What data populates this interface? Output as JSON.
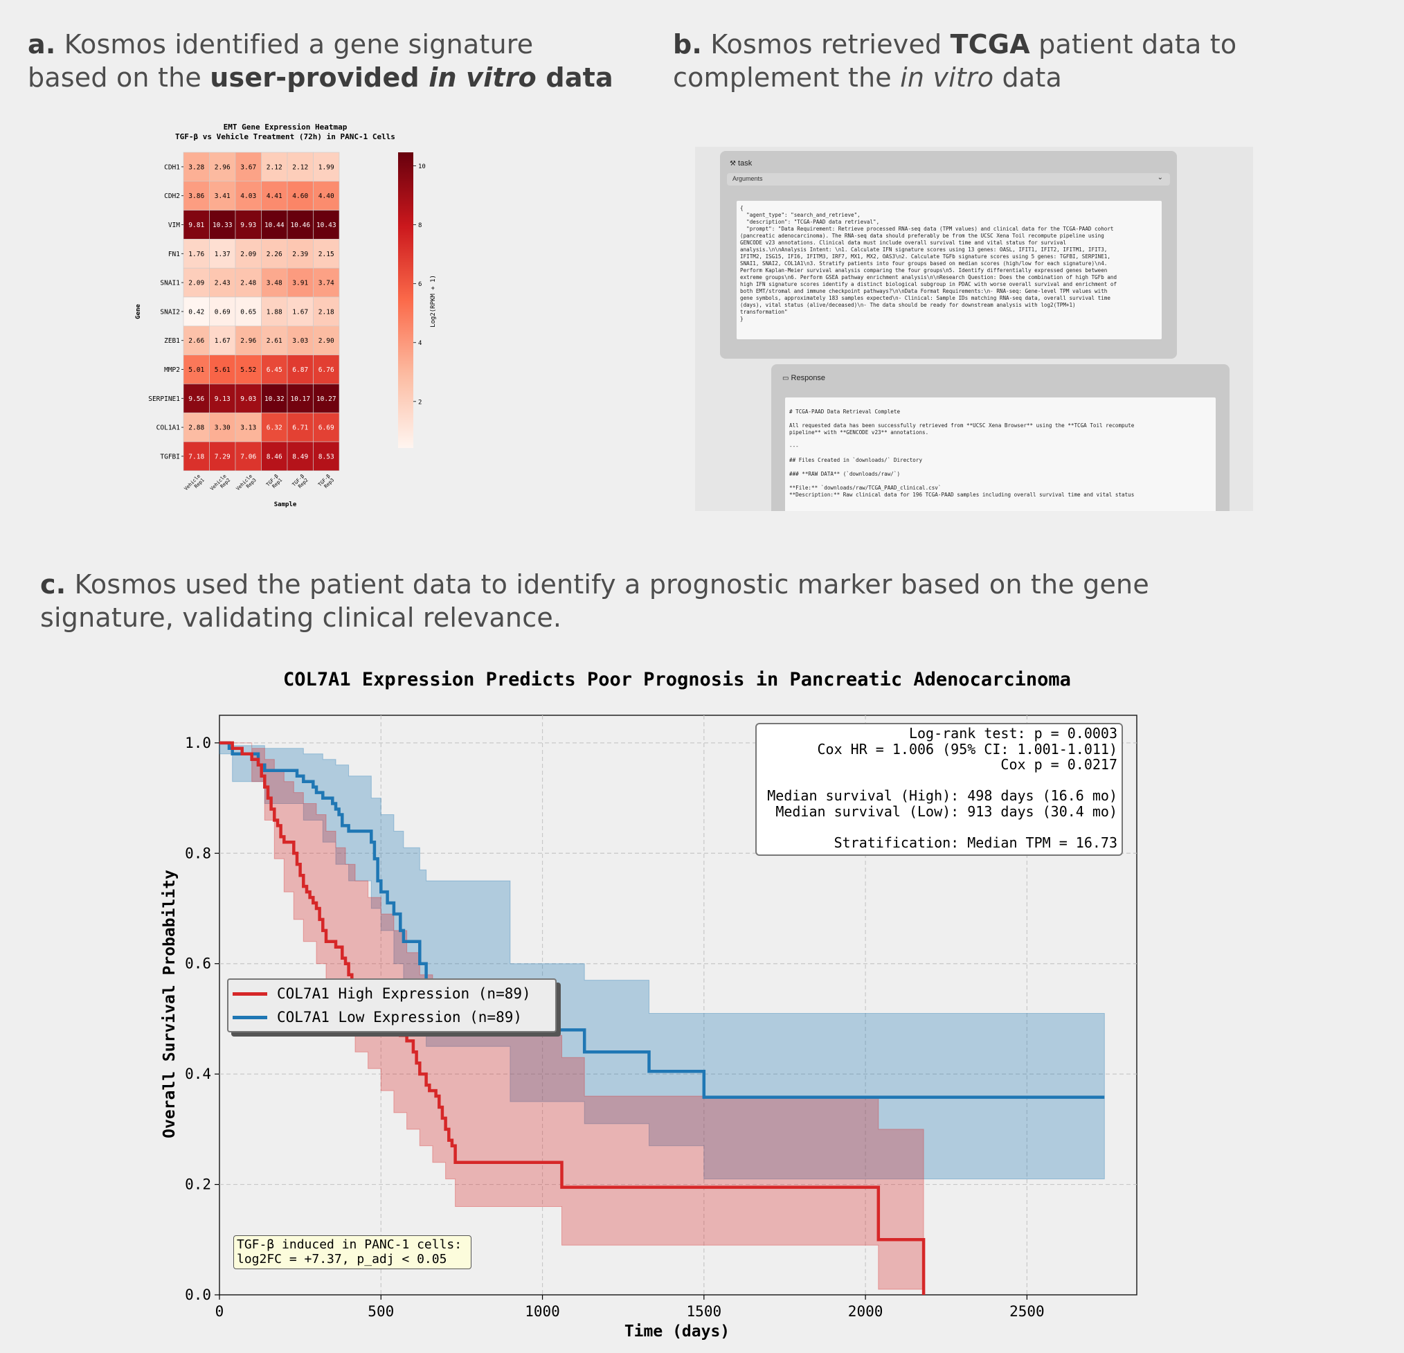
{
  "captions": {
    "a": {
      "letter": "a.",
      "t1": " Kosmos identified a gene signature",
      "t2a": "based on the ",
      "t2b": "user-provided ",
      "t2c": "in vitro",
      "t2d": " data"
    },
    "b": {
      "letter": "b.",
      "t1a": " Kosmos retrieved ",
      "t1b": "TCGA",
      "t1c": " patient data to",
      "t2a": "complement the ",
      "t2b": "in vitro",
      "t2c": " data"
    },
    "c": {
      "letter": "c.",
      "t1": " Kosmos used the patient data to identify a prognostic marker based on the gene",
      "t2": "signature, validating clinical relevance."
    }
  },
  "screenshot": {
    "task_label": "task",
    "args_label": "Arguments",
    "args_text": "{\n  \"agent_type\": \"search_and_retrieve\",\n  \"description\": \"TCGA-PAAD data retrieval\",\n  \"prompt\": \"Data Requirement: Retrieve processed RNA-seq data (TPM values) and clinical data for the TCGA-PAAD cohort\n(pancreatic adenocarcinoma). The RNA-seq data should preferably be from the UCSC Xena Toil recompute pipeline using\nGENCODE v23 annotations. Clinical data must include overall survival time and vital status for survival\nanalysis.\\n\\nAnalysis Intent: \\n1. Calculate IFN signature scores using 13 genes: OASL, IFIT1, IFIT2, IFITM1, IFIT3,\nIFITM2, ISG15, IFI6, IFITM3, IRF7, MX1, MX2, OAS3\\n2. Calculate TGFb signature scores using 5 genes: TGFBI, SERPINE1,\nSNAI1, SNAI2, COL1A1\\n3. Stratify patients into four groups based on median scores (high/low for each signature)\\n4.\nPerform Kaplan-Meier survival analysis comparing the four groups\\n5. Identify differentially expressed genes between\nextreme groups\\n6. Perform GSEA pathway enrichment analysis\\n\\nResearch Question: Does the combination of high TGFb and\nhigh IFN signature scores identify a distinct biological subgroup in PDAC with worse overall survival and enrichment of\nboth EMT/stromal and immune checkpoint pathways?\\n\\nData Format Requirements:\\n- RNA-seq: Gene-level TPM values with\ngene symbols, approximately 183 samples expected\\n- Clinical: Sample IDs matching RNA-seq data, overall survival time\n(days), vital status (alive/deceased)\\n- The data should be ready for downstream analysis with log2(TPM+1)\ntransformation\"\n}",
    "response_label": "Response",
    "response_text": "# TCGA-PAAD Data Retrieval Complete\n\nAll requested data has been successfully retrieved from **UCSC Xena Browser** using the **TCGA Toil recompute\npipeline** with **GENCODE v23** annotations.\n\n---\n\n## Files Created in `downloads/` Directory\n\n### **RAW DATA** (`downloads/raw/`)\n\n**File:** `downloads/raw/TCGA_PAAD_clinical.csv`\n**Description:** Raw clinical data for 196 TCGA-PAAD samples including overall survival time and vital status"
  },
  "heatmap": {
    "title1": "EMT Gene Expression Heatmap",
    "title2": "TGF-β vs Vehicle Treatment (72h) in PANC-1 Cells",
    "ylabel": "Gene",
    "xlabel": "Sample",
    "cbar_label": "Log2(RPKM + 1)",
    "cbar_ticks": [
      "2",
      "4",
      "6",
      "8",
      "10"
    ],
    "cbar_range": [
      0.42,
      10.46
    ],
    "samples": [
      "Vehicle\nRep1",
      "Vehicle\nRep2",
      "Vehicle\nRep3",
      "TGF-β\nRep1",
      "TGF-β\nRep2",
      "TGF-β\nRep3"
    ],
    "genes": [
      "CDH1",
      "CDH2",
      "VIM",
      "FN1",
      "SNAI1",
      "SNAI2",
      "ZEB1",
      "MMP2",
      "SERPINE1",
      "COL1A1",
      "TGFBI"
    ],
    "values": [
      [
        "3.28",
        "2.96",
        "3.67",
        "2.12",
        "2.12",
        "1.99"
      ],
      [
        "3.86",
        "3.41",
        "4.03",
        "4.41",
        "4.60",
        "4.40"
      ],
      [
        "9.81",
        "10.33",
        "9.93",
        "10.44",
        "10.46",
        "10.43"
      ],
      [
        "1.76",
        "1.37",
        "2.09",
        "2.26",
        "2.39",
        "2.15"
      ],
      [
        "2.09",
        "2.43",
        "2.48",
        "3.48",
        "3.91",
        "3.74"
      ],
      [
        "0.42",
        "0.69",
        "0.65",
        "1.88",
        "1.67",
        "2.18"
      ],
      [
        "2.66",
        "1.67",
        "2.96",
        "2.61",
        "3.03",
        "2.90"
      ],
      [
        "5.01",
        "5.61",
        "5.52",
        "6.45",
        "6.87",
        "6.76"
      ],
      [
        "9.56",
        "9.13",
        "9.03",
        "10.32",
        "10.17",
        "10.27"
      ],
      [
        "2.88",
        "3.30",
        "3.13",
        "6.32",
        "6.71",
        "6.69"
      ],
      [
        "7.18",
        "7.29",
        "7.06",
        "8.46",
        "8.49",
        "8.53"
      ]
    ]
  },
  "chart_data": [
    {
      "type": "heatmap",
      "title": "EMT Gene Expression Heatmap / TGF-β vs Vehicle Treatment (72h) in PANC-1 Cells",
      "xlabel": "Sample",
      "ylabel": "Gene",
      "colorbar": "Log2(RPKM + 1)"
    },
    {
      "type": "line",
      "title": "COL7A1 Expression Predicts Poor Prognosis in Pancreatic Adenocarcinoma",
      "xlabel": "Time (days)",
      "ylabel": "Overall Survival Probability",
      "xlim": [
        0,
        2840
      ],
      "ylim": [
        0,
        1.05
      ],
      "xticks": [
        "0",
        "500",
        "1000",
        "1500",
        "2000",
        "2500"
      ],
      "yticks": [
        "0.0",
        "0.2",
        "0.4",
        "0.6",
        "0.8",
        "1.0"
      ],
      "grid": true,
      "legend_position": "center-left",
      "series": [
        {
          "name": "COL7A1 High Expression (n=89)",
          "color": "#d62728",
          "steps": [
            [
              0,
              1.0
            ],
            [
              40,
              0.99
            ],
            [
              70,
              0.98
            ],
            [
              100,
              0.97
            ],
            [
              120,
              0.96
            ],
            [
              130,
              0.94
            ],
            [
              140,
              0.92
            ],
            [
              150,
              0.9
            ],
            [
              160,
              0.88
            ],
            [
              170,
              0.86
            ],
            [
              180,
              0.85
            ],
            [
              190,
              0.83
            ],
            [
              200,
              0.82
            ],
            [
              230,
              0.8
            ],
            [
              240,
              0.78
            ],
            [
              250,
              0.76
            ],
            [
              260,
              0.74
            ],
            [
              270,
              0.73
            ],
            [
              280,
              0.72
            ],
            [
              290,
              0.71
            ],
            [
              300,
              0.7
            ],
            [
              310,
              0.68
            ],
            [
              320,
              0.66
            ],
            [
              330,
              0.64
            ],
            [
              360,
              0.63
            ],
            [
              380,
              0.61
            ],
            [
              390,
              0.6
            ],
            [
              400,
              0.58
            ],
            [
              410,
              0.57
            ],
            [
              420,
              0.56
            ],
            [
              430,
              0.55
            ],
            [
              440,
              0.54
            ],
            [
              460,
              0.53
            ],
            [
              470,
              0.51
            ],
            [
              500,
              0.5
            ],
            [
              540,
              0.48
            ],
            [
              560,
              0.47
            ],
            [
              580,
              0.46
            ],
            [
              600,
              0.44
            ],
            [
              610,
              0.42
            ],
            [
              620,
              0.4
            ],
            [
              640,
              0.38
            ],
            [
              650,
              0.37
            ],
            [
              670,
              0.36
            ],
            [
              680,
              0.34
            ],
            [
              690,
              0.32
            ],
            [
              700,
              0.3
            ],
            [
              710,
              0.28
            ],
            [
              720,
              0.27
            ],
            [
              730,
              0.24
            ],
            [
              1060,
              0.195
            ],
            [
              2040,
              0.1
            ],
            [
              2180,
              0.0
            ]
          ],
          "ci_upper": [
            [
              0,
              1.0
            ],
            [
              100,
              0.99
            ],
            [
              140,
              0.97
            ],
            [
              170,
              0.95
            ],
            [
              200,
              0.93
            ],
            [
              230,
              0.91
            ],
            [
              260,
              0.89
            ],
            [
              300,
              0.87
            ],
            [
              330,
              0.84
            ],
            [
              360,
              0.81
            ],
            [
              390,
              0.78
            ],
            [
              420,
              0.75
            ],
            [
              460,
              0.72
            ],
            [
              500,
              0.69
            ],
            [
              540,
              0.66
            ],
            [
              580,
              0.62
            ],
            [
              620,
              0.58
            ],
            [
              660,
              0.55
            ],
            [
              700,
              0.51
            ],
            [
              730,
              0.47
            ],
            [
              1060,
              0.43
            ],
            [
              1130,
              0.36
            ],
            [
              2040,
              0.3
            ],
            [
              2180,
              0.3
            ]
          ],
          "ci_lower": [
            [
              0,
              1.0
            ],
            [
              100,
              0.93
            ],
            [
              140,
              0.86
            ],
            [
              170,
              0.79
            ],
            [
              200,
              0.73
            ],
            [
              230,
              0.68
            ],
            [
              260,
              0.64
            ],
            [
              300,
              0.6
            ],
            [
              330,
              0.55
            ],
            [
              360,
              0.51
            ],
            [
              390,
              0.47
            ],
            [
              420,
              0.44
            ],
            [
              460,
              0.41
            ],
            [
              500,
              0.37
            ],
            [
              540,
              0.33
            ],
            [
              580,
              0.3
            ],
            [
              620,
              0.27
            ],
            [
              660,
              0.24
            ],
            [
              700,
              0.21
            ],
            [
              730,
              0.16
            ],
            [
              1060,
              0.09
            ],
            [
              2040,
              0.01
            ],
            [
              2180,
              0.0
            ]
          ]
        },
        {
          "name": "COL7A1 Low Expression (n=89)",
          "color": "#1f77b4",
          "steps": [
            [
              0,
              1.0
            ],
            [
              30,
              0.99
            ],
            [
              40,
              0.98
            ],
            [
              120,
              0.96
            ],
            [
              140,
              0.95
            ],
            [
              240,
              0.94
            ],
            [
              260,
              0.93
            ],
            [
              290,
              0.92
            ],
            [
              300,
              0.91
            ],
            [
              320,
              0.9
            ],
            [
              350,
              0.89
            ],
            [
              360,
              0.88
            ],
            [
              370,
              0.87
            ],
            [
              380,
              0.85
            ],
            [
              400,
              0.84
            ],
            [
              470,
              0.82
            ],
            [
              480,
              0.79
            ],
            [
              490,
              0.75
            ],
            [
              500,
              0.73
            ],
            [
              520,
              0.71
            ],
            [
              540,
              0.69
            ],
            [
              560,
              0.66
            ],
            [
              570,
              0.64
            ],
            [
              620,
              0.6
            ],
            [
              640,
              0.57
            ],
            [
              900,
              0.48
            ],
            [
              1130,
              0.44
            ],
            [
              1330,
              0.405
            ],
            [
              1500,
              0.358
            ],
            [
              2740,
              0.358
            ]
          ],
          "ci_upper": [
            [
              0,
              1.0
            ],
            [
              40,
              0.995
            ],
            [
              140,
              0.99
            ],
            [
              260,
              0.98
            ],
            [
              320,
              0.97
            ],
            [
              360,
              0.96
            ],
            [
              400,
              0.94
            ],
            [
              470,
              0.9
            ],
            [
              500,
              0.87
            ],
            [
              540,
              0.84
            ],
            [
              570,
              0.81
            ],
            [
              620,
              0.77
            ],
            [
              640,
              0.75
            ],
            [
              900,
              0.6
            ],
            [
              1130,
              0.57
            ],
            [
              1330,
              0.51
            ],
            [
              1500,
              0.51
            ],
            [
              2740,
              0.51
            ]
          ],
          "ci_lower": [
            [
              0,
              0.98
            ],
            [
              40,
              0.93
            ],
            [
              140,
              0.89
            ],
            [
              260,
              0.86
            ],
            [
              320,
              0.82
            ],
            [
              360,
              0.78
            ],
            [
              400,
              0.75
            ],
            [
              470,
              0.7
            ],
            [
              500,
              0.66
            ],
            [
              540,
              0.6
            ],
            [
              570,
              0.53
            ],
            [
              620,
              0.49
            ],
            [
              640,
              0.45
            ],
            [
              900,
              0.35
            ],
            [
              1130,
              0.31
            ],
            [
              1330,
              0.27
            ],
            [
              1500,
              0.21
            ],
            [
              2740,
              0.21
            ]
          ]
        }
      ]
    }
  ],
  "km": {
    "title": "COL7A1 Expression Predicts Poor Prognosis in Pancreatic Adenocarcinoma",
    "xlabel": "Time (days)",
    "ylabel": "Overall Survival Probability",
    "stats": "Log-rank test: p = 0.0003\nCox HR = 1.006 (95% CI: 1.001-1.011)\nCox p = 0.0217\n\nMedian survival (High): 498 days (16.6 mo)\nMedian survival (Low): 913 days (30.4 mo)\n\nStratification: Median TPM = 16.73",
    "note": "TGF-β induced in PANC-1 cells:\nlog2FC = +7.37, p_adj < 0.05",
    "legend_high": "COL7A1 High Expression (n=89)",
    "legend_low": "COL7A1 Low Expression (n=89)"
  }
}
